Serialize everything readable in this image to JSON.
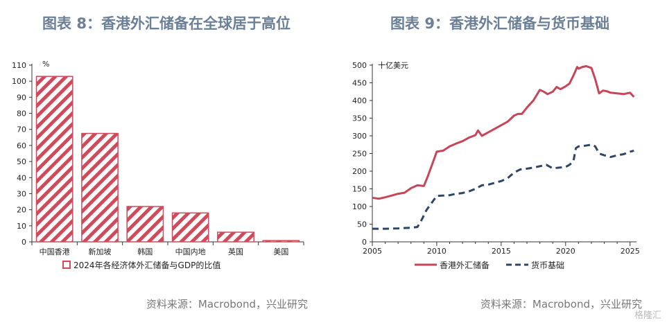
{
  "watermark": "格隆汇",
  "chart_data": [
    {
      "type": "bar",
      "title": "图表 8：香港外汇储备在全球居于高位",
      "source": "资料来源：Macrobond，兴业研究",
      "ylabel": "%",
      "ylim": [
        0,
        110
      ],
      "yticks": [
        0,
        10,
        20,
        30,
        40,
        50,
        60,
        70,
        80,
        90,
        100,
        110
      ],
      "categories": [
        "中国香港",
        "新加坡",
        "韩国",
        "中国内地",
        "英国",
        "美国"
      ],
      "series": [
        {
          "name": "2024年各经济体外汇储备与GDP的比值",
          "values": [
            103,
            67.5,
            22,
            18,
            6,
            0.8
          ]
        }
      ],
      "legend": "bottom",
      "colors": {
        "bar": "#cf4a5a"
      }
    },
    {
      "type": "line",
      "title": "图表 9：香港外汇储备与货币基础",
      "source": "资料来源：Macrobond，兴业研究",
      "ylabel": "十亿美元",
      "ylim": [
        0,
        500
      ],
      "yticks": [
        0,
        50,
        100,
        150,
        200,
        250,
        300,
        350,
        400,
        450,
        500
      ],
      "xlim": [
        2005,
        2025.5
      ],
      "xticks": [
        2005,
        2010,
        2015,
        2020,
        2025
      ],
      "legend": "bottom",
      "series": [
        {
          "name": "香港外汇储备",
          "color": "#c84558",
          "style": "solid",
          "x": [
            2005.0,
            2005.5,
            2006.0,
            2006.5,
            2007.0,
            2007.5,
            2008.0,
            2008.5,
            2009.0,
            2009.3,
            2009.6,
            2010.0,
            2010.5,
            2011.0,
            2011.5,
            2012.0,
            2012.5,
            2013.0,
            2013.2,
            2013.5,
            2014.0,
            2014.5,
            2015.0,
            2015.5,
            2016.0,
            2016.3,
            2016.6,
            2017.0,
            2017.5,
            2018.0,
            2018.3,
            2018.6,
            2019.0,
            2019.3,
            2019.6,
            2020.0,
            2020.3,
            2020.6,
            2020.9,
            2021.0,
            2021.3,
            2021.6,
            2022.0,
            2022.3,
            2022.6,
            2022.9,
            2023.2,
            2023.5,
            2024.0,
            2024.5,
            2025.0,
            2025.3
          ],
          "y": [
            125,
            122,
            126,
            131,
            136,
            139,
            152,
            160,
            158,
            185,
            215,
            255,
            258,
            270,
            278,
            285,
            295,
            302,
            315,
            300,
            310,
            320,
            330,
            340,
            357,
            362,
            362,
            380,
            400,
            430,
            425,
            418,
            425,
            438,
            432,
            440,
            448,
            470,
            495,
            490,
            495,
            497,
            492,
            460,
            420,
            428,
            426,
            422,
            420,
            418,
            422,
            410
          ]
        },
        {
          "name": "货币基础",
          "color": "#2e4563",
          "style": "dashed",
          "x": [
            2005.0,
            2006.0,
            2007.0,
            2008.0,
            2008.5,
            2008.8,
            2009.2,
            2009.6,
            2010.0,
            2011.0,
            2011.5,
            2012.0,
            2012.5,
            2013.0,
            2013.5,
            2014.0,
            2014.5,
            2015.0,
            2015.5,
            2016.0,
            2016.5,
            2017.0,
            2017.5,
            2018.0,
            2018.5,
            2019.0,
            2019.5,
            2020.0,
            2020.3,
            2020.6,
            2020.8,
            2021.0,
            2021.5,
            2022.0,
            2022.3,
            2022.6,
            2023.0,
            2023.5,
            2024.0,
            2024.5,
            2025.0,
            2025.3
          ],
          "y": [
            37,
            37,
            38,
            40,
            42,
            60,
            90,
            110,
            130,
            132,
            136,
            138,
            143,
            150,
            160,
            162,
            167,
            172,
            180,
            196,
            205,
            207,
            210,
            214,
            218,
            208,
            210,
            212,
            218,
            227,
            265,
            270,
            272,
            275,
            270,
            250,
            245,
            240,
            245,
            248,
            255,
            258
          ]
        }
      ]
    }
  ]
}
